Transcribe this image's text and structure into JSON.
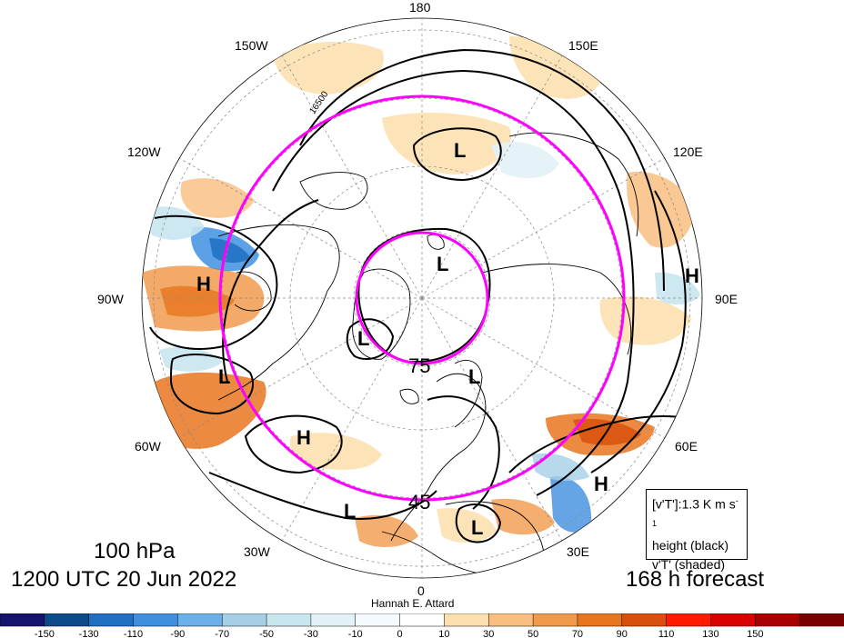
{
  "map": {
    "level": "100 hPa",
    "valid_time": "1200 UTC 20 Jun 2022",
    "forecast": "168 h forecast",
    "author": "Hannah E. Attard",
    "legend": {
      "line1_base": "[v'T']:1.3 K m s",
      "line1_sup": "-1",
      "line2": "height (black)",
      "line3": "v'T' (shaded)"
    },
    "longitude_labels": [
      "180",
      "150E",
      "120E",
      "90E",
      "60E",
      "30E",
      "0",
      "30W",
      "60W",
      "90W",
      "120W",
      "150W"
    ],
    "latitude_rings": [
      "75",
      "45"
    ],
    "contour_label": "16500",
    "pressure_centers": [
      {
        "type": "L",
        "label": "L"
      },
      {
        "type": "L",
        "label": "L"
      },
      {
        "type": "L",
        "label": "L"
      },
      {
        "type": "L",
        "label": "L"
      },
      {
        "type": "L",
        "label": "L"
      },
      {
        "type": "L",
        "label": "L"
      },
      {
        "type": "L",
        "label": "L"
      },
      {
        "type": "H",
        "label": "H"
      },
      {
        "type": "H",
        "label": "H"
      },
      {
        "type": "H",
        "label": "H"
      },
      {
        "type": "H",
        "label": "H"
      }
    ],
    "colors": {
      "ring": "#ff00ff",
      "contours": "#000000"
    },
    "colorbar": {
      "ticks": [
        "-150",
        "-130",
        "-110",
        "-90",
        "-70",
        "-50",
        "-30",
        "-10",
        "0",
        "10",
        "30",
        "50",
        "70",
        "90",
        "110",
        "130",
        "150"
      ],
      "colors": [
        "#14146e",
        "#0c4a8c",
        "#1f6fc2",
        "#3f8fe0",
        "#6bb0e8",
        "#a6cfe6",
        "#c8e6ee",
        "#e2f1f6",
        "#f4fafd",
        "#ffffff",
        "#fde0b0",
        "#f9be80",
        "#f19a4c",
        "#e7761f",
        "#d9500c",
        "#ff1a00",
        "#d90000",
        "#a80000",
        "#7a0000"
      ]
    }
  }
}
